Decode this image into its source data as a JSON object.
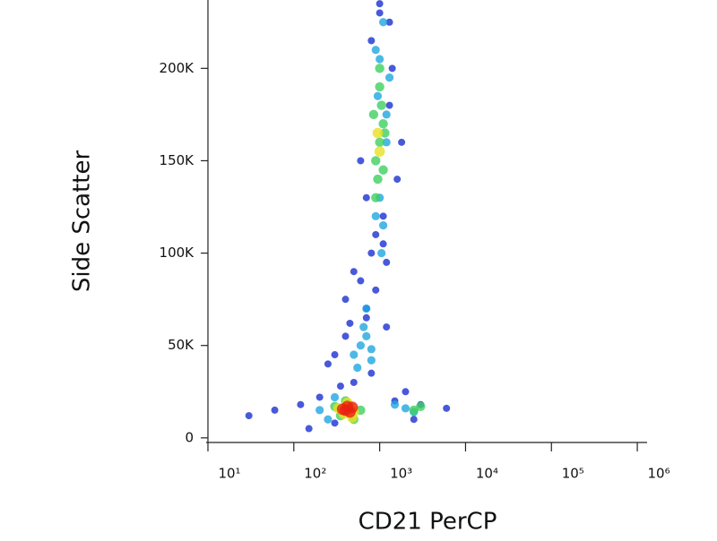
{
  "chart_data": {
    "type": "scatter",
    "xlabel": "CD21 PerCP",
    "ylabel": "Side Scatter",
    "xscale": "log",
    "xlim": [
      10,
      1300000
    ],
    "ylim": [
      -2500,
      237000
    ],
    "xticks": [
      {
        "value": 10,
        "label": "10¹"
      },
      {
        "value": 100,
        "label": "10²"
      },
      {
        "value": 1000,
        "label": "10³"
      },
      {
        "value": 10000,
        "label": "10⁴"
      },
      {
        "value": 100000,
        "label": "10⁵"
      },
      {
        "value": 1000000,
        "label": "10⁶"
      }
    ],
    "yticks": [
      0,
      {
        "value": 50000,
        "label": "50K"
      },
      {
        "value": 100000,
        "label": "100K"
      },
      {
        "value": 150000,
        "label": "150K"
      },
      {
        "value": 200000,
        "label": "200K"
      }
    ],
    "series": [
      {
        "color": "#1a2fd0",
        "x": [
          30,
          60,
          120,
          200,
          300,
          500,
          800,
          1500,
          3000,
          6000,
          150,
          250,
          400,
          700,
          1200,
          2000,
          900,
          1100,
          700,
          1300,
          600,
          800,
          1600,
          500,
          400,
          300,
          1000,
          1400,
          800,
          1200,
          900,
          700,
          2500,
          350,
          450,
          600,
          1800,
          1000,
          1300,
          1100
        ],
        "values": [
          12000,
          15000,
          18000,
          22000,
          8000,
          30000,
          35000,
          20000,
          18000,
          16000,
          5000,
          40000,
          55000,
          70000,
          60000,
          25000,
          110000,
          120000,
          130000,
          180000,
          150000,
          215000,
          140000,
          90000,
          75000,
          45000,
          230000,
          200000,
          100000,
          95000,
          80000,
          65000,
          10000,
          28000,
          62000,
          85000,
          160000,
          235000,
          225000,
          105000
        ]
      },
      {
        "color": "#1fa6e0",
        "x": [
          500,
          600,
          700,
          800,
          550,
          650,
          900,
          1000,
          1100,
          1200,
          1000,
          900,
          1300,
          1100,
          300,
          200,
          250,
          1500,
          2000,
          2500,
          800,
          700,
          1200,
          950,
          1050
        ],
        "values": [
          45000,
          50000,
          55000,
          42000,
          38000,
          60000,
          120000,
          130000,
          115000,
          175000,
          205000,
          210000,
          195000,
          225000,
          22000,
          15000,
          10000,
          18000,
          16000,
          14000,
          48000,
          70000,
          160000,
          185000,
          100000
        ]
      },
      {
        "color": "#3fd060",
        "x": [
          900,
          1000,
          1100,
          950,
          1050,
          1000,
          900,
          1150,
          850,
          1000,
          400,
          500,
          350,
          300,
          600,
          2500,
          3000,
          1100
        ],
        "values": [
          150000,
          160000,
          170000,
          140000,
          180000,
          190000,
          130000,
          165000,
          175000,
          200000,
          20000,
          10000,
          12000,
          17000,
          15000,
          15000,
          17000,
          145000
        ]
      },
      {
        "color": "#e8e020",
        "x": [
          380,
          450,
          500,
          420,
          330,
          950,
          1000,
          480
        ],
        "values": [
          13000,
          17000,
          14000,
          19000,
          16000,
          165000,
          155000,
          11000
        ]
      },
      {
        "color": "#e82010",
        "x": [
          400,
          450,
          420,
          370,
          480
        ],
        "values": [
          15000,
          14000,
          17000,
          15500,
          16500
        ]
      }
    ]
  }
}
